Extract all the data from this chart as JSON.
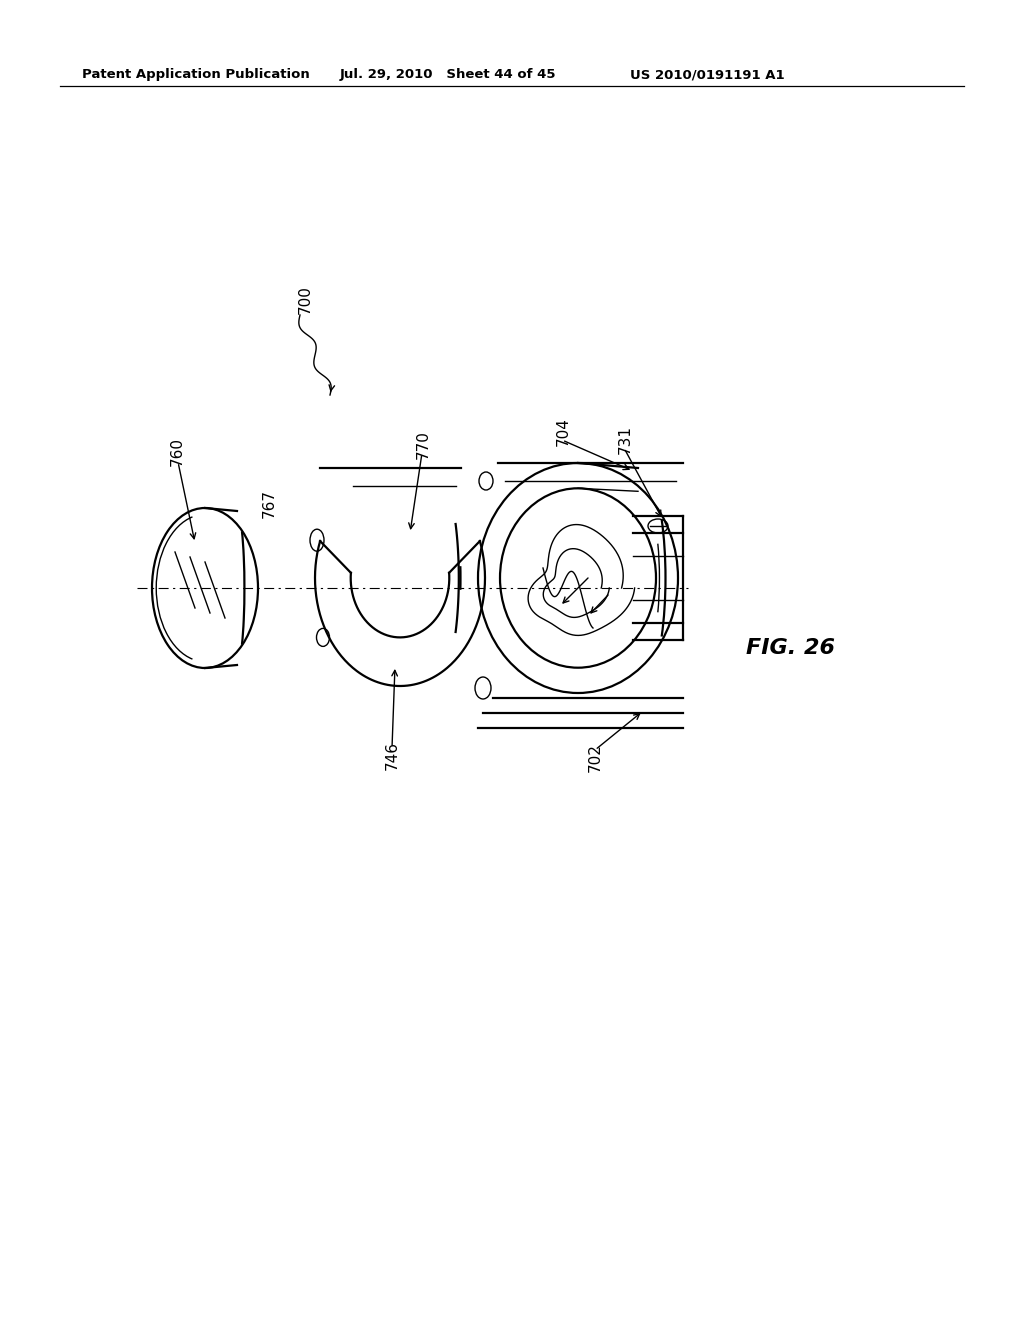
{
  "bg_color": "#ffffff",
  "header_left": "Patent Application Publication",
  "header_mid": "Jul. 29, 2010   Sheet 44 of 45",
  "header_right": "US 2010/0191191 A1",
  "fig_label": "FIG. 26",
  "label_700": "700",
  "label_760": "760",
  "label_767": "767",
  "label_770": "770",
  "label_704": "704",
  "label_731": "731",
  "label_746": "746",
  "label_702": "702",
  "lw_main": 1.6,
  "lw_thin": 1.0
}
